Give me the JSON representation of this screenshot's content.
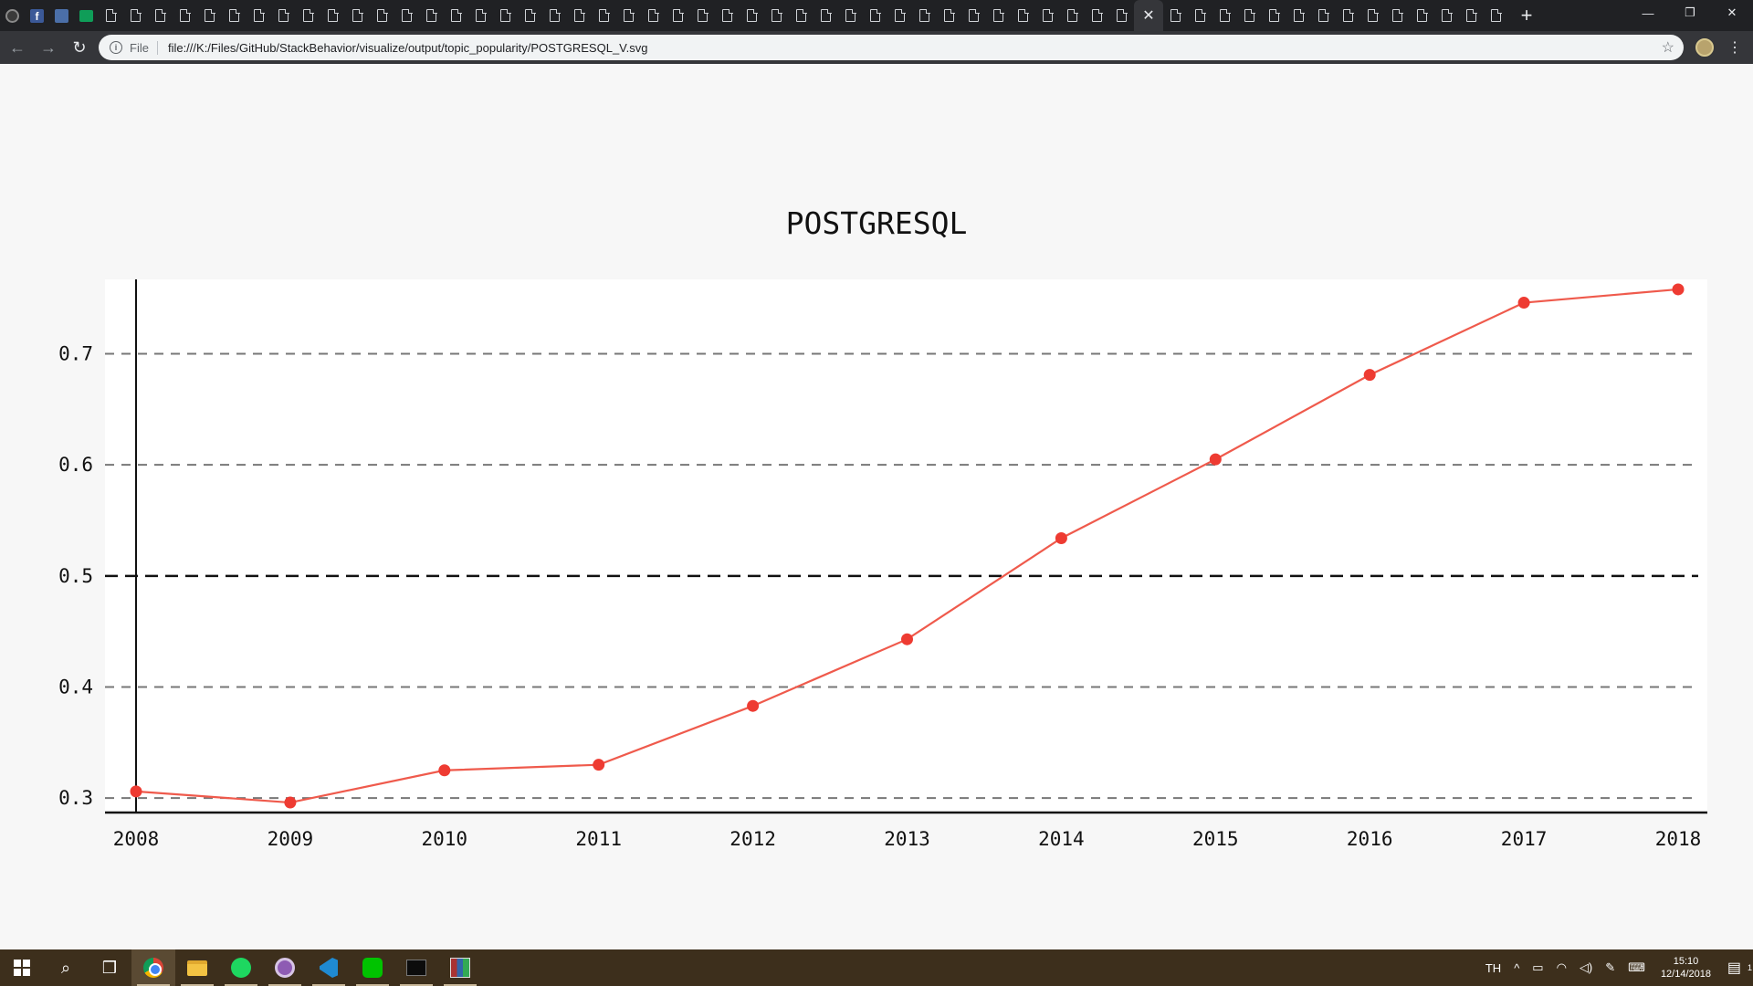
{
  "browser": {
    "url_scheme": "File",
    "url": "file:///K:/Files/GitHub/StackBehavior/visualize/output/topic_popularity/POSTGRESQL_V.svg",
    "close_tab_glyph": "✕",
    "new_tab_glyph": "+",
    "window_controls": {
      "minimize": "—",
      "restore": "❐",
      "close": "✕"
    },
    "back_glyph": "←",
    "forward_glyph": "→",
    "reload_glyph": "↻",
    "bookmark_glyph": "☆",
    "menu_glyph": "⋮",
    "info_glyph": "i"
  },
  "chart_data": {
    "type": "line",
    "title": "POSTGRESQL",
    "x": [
      2008,
      2009,
      2010,
      2011,
      2012,
      2013,
      2014,
      2015,
      2016,
      2017,
      2018
    ],
    "x_tick_labels": [
      "2008",
      "2009",
      "2010",
      "2011",
      "2012",
      "2013",
      "2014",
      "2015",
      "2016",
      "2017",
      "2018"
    ],
    "series": [
      {
        "values": [
          0.306,
          0.296,
          0.325,
          0.33,
          0.383,
          0.443,
          0.534,
          0.605,
          0.681,
          0.746,
          0.758
        ]
      }
    ],
    "y_ticks": [
      0.3,
      0.4,
      0.5,
      0.6,
      0.7
    ],
    "y_tick_labels": [
      "0.3",
      "0.4",
      "0.5",
      "0.6",
      "0.7"
    ],
    "ylim": [
      0.287,
      0.767
    ],
    "xlim": [
      2008,
      2018
    ],
    "grid": "horizontal dashed",
    "reference_line": 0.5,
    "line_color": "#ef5a4c",
    "marker_color": "#ee3b32",
    "grid_color": "#777777",
    "reference_color": "#111111"
  },
  "taskbar": {
    "apps": [
      "windows-start",
      "search",
      "task-view",
      "chrome",
      "file-explorer",
      "spotify",
      "github-desktop",
      "vscode",
      "line",
      "terminal",
      "winrar"
    ],
    "search_glyph": "⌕",
    "taskview_glyph": "❒",
    "language": "TH",
    "tray_up_glyph": "^",
    "time": "15:10",
    "date": "12/14/2018",
    "notification_count": "1"
  }
}
